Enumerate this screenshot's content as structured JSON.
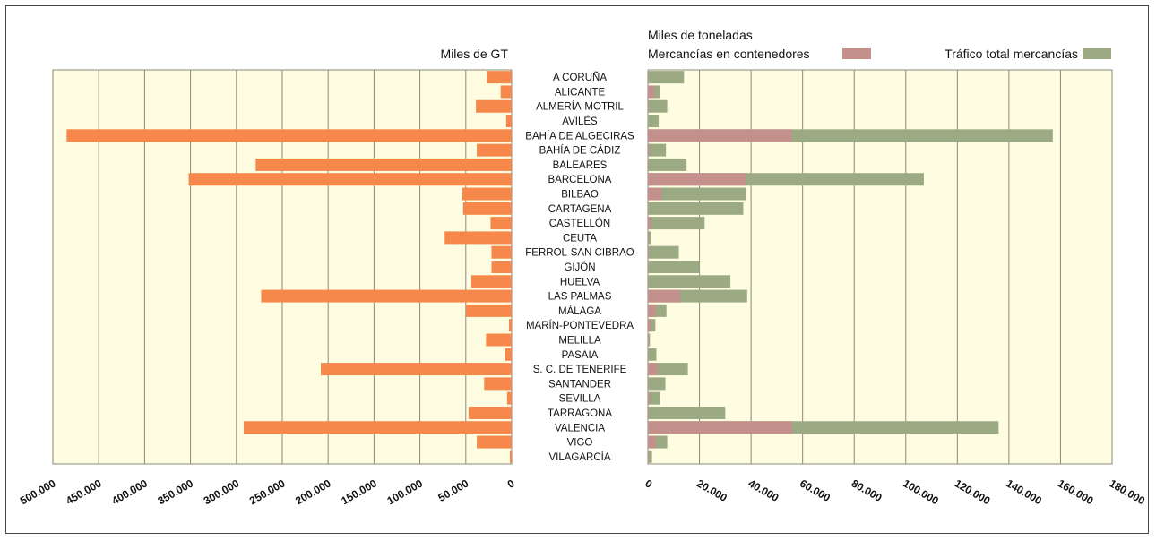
{
  "chart_data": [
    {
      "type": "bar",
      "orientation": "horizontal",
      "direction": "right-to-left",
      "title": "Miles de GT",
      "categories": [
        "A CORUÑA",
        "ALICANTE",
        "ALMERÍA-MOTRIL",
        "AVILÉS",
        "BAHÍA DE ALGECIRAS",
        "BAHÍA DE CÁDIZ",
        "BALEARES",
        "BARCELONA",
        "BILBAO",
        "CARTAGENA",
        "CASTELLÓN",
        "CEUTA",
        "FERROL-SAN CIBRAO",
        "GIJÓN",
        "HUELVA",
        "LAS PALMAS",
        "MÁLAGA",
        "MARÍN-PONTEVEDRA",
        "MELILLA",
        "PASAIA",
        "S. C. DE TENERIFE",
        "SANTANDER",
        "SEVILLA",
        "TARRAGONA",
        "VALENCIA",
        "VIGO",
        "VILAGARCÍA"
      ],
      "values": [
        27000,
        12000,
        39000,
        6000,
        485000,
        38000,
        279000,
        352000,
        54000,
        53000,
        23000,
        73000,
        22000,
        22000,
        44000,
        273000,
        50000,
        3000,
        28000,
        7000,
        208000,
        30000,
        5000,
        47000,
        292000,
        38000,
        2000
      ],
      "xlim": [
        0,
        500000
      ],
      "ticks": [
        0,
        50000,
        100000,
        150000,
        200000,
        250000,
        300000,
        350000,
        400000,
        450000,
        500000
      ],
      "tick_labels": [
        "0",
        "50.000",
        "100.000",
        "150.000",
        "200.000",
        "250.000",
        "300.000",
        "350.000",
        "400.000",
        "450.000",
        "500.000"
      ],
      "color": "#F5884A",
      "grid": true
    },
    {
      "type": "bar",
      "orientation": "horizontal",
      "layout": "overlay",
      "title": "Miles de toneladas",
      "categories": [
        "A CORUÑA",
        "ALICANTE",
        "ALMERÍA-MOTRIL",
        "AVILÉS",
        "BAHÍA DE ALGECIRAS",
        "BAHÍA DE CÁDIZ",
        "BALEARES",
        "BARCELONA",
        "BILBAO",
        "CARTAGENA",
        "CASTELLÓN",
        "CEUTA",
        "FERROL-SAN CIBRAO",
        "GIJÓN",
        "HUELVA",
        "LAS PALMAS",
        "MÁLAGA",
        "MARÍN-PONTEVEDRA",
        "MELILLA",
        "PASAIA",
        "S. C. DE TENERIFE",
        "SANTANDER",
        "SEVILLA",
        "TARRAGONA",
        "VALENCIA",
        "VIGO",
        "VILAGARCÍA"
      ],
      "series": [
        {
          "name": "Tráfico total mercancías",
          "color": "#9BAA83",
          "values": [
            14000,
            4500,
            7500,
            4200,
            157000,
            7000,
            15000,
            107000,
            38000,
            37000,
            22000,
            1200,
            12000,
            20000,
            32000,
            38500,
            7200,
            2900,
            800,
            3300,
            15500,
            6800,
            4600,
            30000,
            136000,
            7500,
            1600
          ]
        },
        {
          "name": "Mercancías en contenedores",
          "color": "#C4908C",
          "values": [
            200,
            2600,
            300,
            0,
            56000,
            600,
            300,
            38000,
            5300,
            200,
            1200,
            200,
            400,
            200,
            150,
            12500,
            3200,
            1200,
            300,
            100,
            3700,
            200,
            700,
            300,
            56000,
            3100,
            200
          ]
        }
      ],
      "xlim": [
        0,
        180000
      ],
      "ticks": [
        0,
        20000,
        40000,
        60000,
        80000,
        100000,
        120000,
        140000,
        160000,
        180000
      ],
      "tick_labels": [
        "0",
        "20.000",
        "40.000",
        "60.000",
        "80.000",
        "100.000",
        "120.000",
        "140.000",
        "160.000",
        "180.000"
      ],
      "legend": "top",
      "grid": true
    }
  ]
}
